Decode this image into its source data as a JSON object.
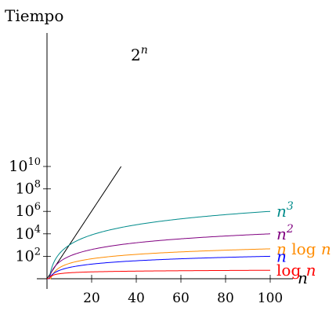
{
  "chart_data": {
    "type": "line",
    "title": "",
    "ylabel": "Tiempo",
    "xlabel": "n",
    "x_ticks": [
      20,
      40,
      60,
      80,
      100
    ],
    "y_scale": "log",
    "y_ticks": [
      {
        "base": "10",
        "exp": "2",
        "value": 100
      },
      {
        "base": "10",
        "exp": "4",
        "value": 10000
      },
      {
        "base": "10",
        "exp": "6",
        "value": 1000000
      },
      {
        "base": "10",
        "exp": "8",
        "value": 100000000
      },
      {
        "base": "10",
        "exp": "10",
        "value": 10000000000
      }
    ],
    "xlim": [
      0,
      100
    ],
    "ylim": [
      1,
      10000000000
    ],
    "grid": false,
    "series": [
      {
        "name": "2^n",
        "label_base": "2",
        "label_sup": "n",
        "label_tail": "",
        "color": "#000000",
        "formula": "2^n",
        "x_range": [
          0,
          33.2
        ],
        "points": [
          [
            0,
            1
          ],
          [
            10,
            1024
          ],
          [
            20,
            1048576
          ],
          [
            30,
            1073741824
          ],
          [
            33.2,
            10000000000
          ]
        ]
      },
      {
        "name": "n^3",
        "label_base": "n",
        "label_sup": "3",
        "label_tail": "",
        "color": "#008b8b",
        "formula": "n^3",
        "x_range": [
          1,
          100
        ],
        "points": [
          [
            1,
            1
          ],
          [
            10,
            1000
          ],
          [
            50,
            125000
          ],
          [
            100,
            1000000
          ]
        ]
      },
      {
        "name": "n^2",
        "label_base": "n",
        "label_sup": "2",
        "label_tail": "",
        "color": "#800080",
        "formula": "n^2",
        "x_range": [
          1,
          100
        ],
        "points": [
          [
            1,
            1
          ],
          [
            10,
            100
          ],
          [
            50,
            2500
          ],
          [
            100,
            10000
          ]
        ]
      },
      {
        "name": "n log n",
        "label_base": "n log ",
        "label_sup": "",
        "label_tail": "n",
        "color": "#ff8c00",
        "formula": "n*log(n)",
        "x_range": [
          1,
          100
        ],
        "points": [
          [
            10,
            23
          ],
          [
            50,
            196
          ],
          [
            100,
            461
          ]
        ]
      },
      {
        "name": "n",
        "label_base": "n",
        "label_sup": "",
        "label_tail": "",
        "color": "#0000ff",
        "formula": "n",
        "x_range": [
          1,
          100
        ],
        "points": [
          [
            1,
            1
          ],
          [
            10,
            10
          ],
          [
            50,
            50
          ],
          [
            100,
            100
          ]
        ]
      },
      {
        "name": "log n",
        "label_base": "log ",
        "label_sup": "",
        "label_tail": "n",
        "color": "#ff0000",
        "formula": "log(n)",
        "x_range": [
          1,
          100
        ],
        "points": [
          [
            10,
            2.3
          ],
          [
            50,
            3.9
          ],
          [
            100,
            4.6
          ]
        ]
      }
    ]
  }
}
